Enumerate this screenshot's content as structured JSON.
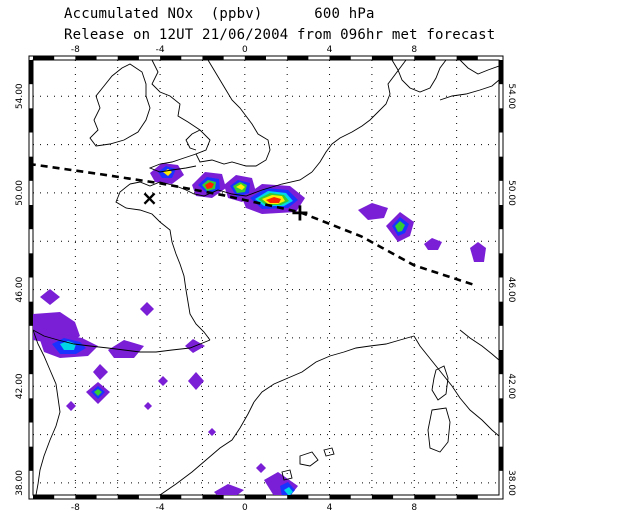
{
  "header": {
    "title_line1": "Accumulated NOx  (ppbv)      600 hPa",
    "title_line2": "Release on 12UT 21/06/2004 from 096hr met forecast"
  },
  "map": {
    "lon_range": [
      -10,
      12
    ],
    "lat_range": [
      37.5,
      55.5
    ],
    "lon_ticks": [
      "-8",
      "-4",
      "0",
      "4",
      "8"
    ],
    "lon_tick_values": [
      -8,
      -4,
      0,
      4,
      8
    ],
    "lat_ticks": [
      "54.00",
      "50.00",
      "46.00",
      "42.00",
      "38.00"
    ],
    "lat_tick_values": [
      54,
      50,
      46,
      42,
      38
    ],
    "grid": true,
    "colors": {
      "purple": "#7a1fd6",
      "blue": "#1a32ff",
      "cyan": "#00d8e8",
      "green": "#33cc33",
      "yellow": "#ffee00",
      "red": "#ff2200"
    },
    "release_marker": {
      "symbol": "×",
      "lon": -4.5,
      "lat": 49.8
    },
    "end_marker": {
      "symbol": "+",
      "lon": 2.6,
      "lat": 49.2
    },
    "trajectory": [
      [
        -10.2,
        51.2
      ],
      [
        -7,
        50.8
      ],
      [
        -4,
        50.4
      ],
      [
        -1,
        49.9
      ],
      [
        2.6,
        49.2
      ],
      [
        5.5,
        48.2
      ],
      [
        8,
        47.0
      ],
      [
        10.8,
        46.2
      ]
    ]
  }
}
